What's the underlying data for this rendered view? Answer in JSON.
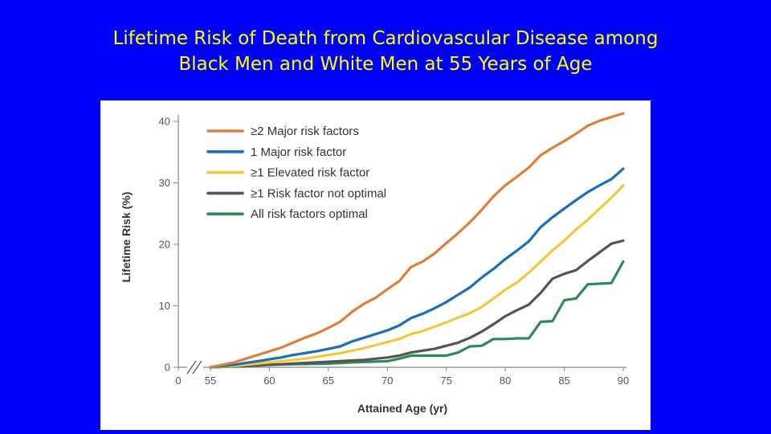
{
  "slide": {
    "title_line1": "Lifetime Risk of Death from Cardiovascular Disease among",
    "title_line2": "Black Men and White Men at 55 Years of Age",
    "background_color": "#0000ff",
    "title_color": "#ffff00"
  },
  "chart_data": {
    "type": "line",
    "title": "",
    "xlabel": "Attained Age (yr)",
    "ylabel": "Lifetime Risk (%)",
    "xlim": [
      55,
      90
    ],
    "ylim": [
      0,
      40
    ],
    "x_ticks": [
      "0",
      "55",
      "60",
      "65",
      "70",
      "75",
      "80",
      "85",
      "90"
    ],
    "y_ticks": [
      "0",
      "10",
      "20",
      "30",
      "40"
    ],
    "axis_break": true,
    "grid": false,
    "legend_position": "top-left",
    "series": [
      {
        "name": "≥2 Major risk factors",
        "color": "#e07f3c",
        "x": [
          55,
          57,
          58,
          59,
          60,
          61,
          62,
          63,
          64,
          65,
          66,
          67,
          68,
          69,
          70,
          71,
          72,
          73,
          74,
          75,
          76,
          77,
          78,
          79,
          80,
          81,
          82,
          83,
          84,
          85,
          86,
          87,
          88,
          89,
          90
        ],
        "values": [
          0,
          0.8,
          1.4,
          2,
          2.6,
          3.2,
          4,
          4.8,
          5.5,
          6.4,
          7.4,
          9,
          10.3,
          11.3,
          12.7,
          14,
          16.3,
          17.2,
          18.5,
          20.2,
          21.8,
          23.6,
          25.6,
          27.8,
          29.6,
          31,
          32.5,
          34.5,
          35.7,
          36.8,
          38,
          39.3,
          40.1,
          40.7,
          41.3
        ]
      },
      {
        "name": "1 Major risk factor",
        "color": "#1a6fb8",
        "x": [
          55,
          57,
          58,
          59,
          60,
          61,
          62,
          63,
          64,
          65,
          66,
          67,
          68,
          69,
          70,
          71,
          72,
          73,
          74,
          75,
          76,
          77,
          78,
          79,
          80,
          81,
          82,
          83,
          84,
          85,
          86,
          87,
          88,
          89,
          90
        ],
        "values": [
          0,
          0.4,
          0.7,
          1,
          1.3,
          1.6,
          2,
          2.3,
          2.6,
          3,
          3.4,
          4.2,
          4.8,
          5.4,
          6,
          6.8,
          8,
          8.7,
          9.6,
          10.6,
          11.8,
          13,
          14.6,
          16,
          17.6,
          19,
          20.5,
          22.8,
          24.4,
          25.8,
          27.2,
          28.5,
          29.6,
          30.6,
          32.3
        ]
      },
      {
        "name": "≥1 Elevated risk factor",
        "color": "#f1c93c",
        "x": [
          55,
          57,
          58,
          59,
          60,
          61,
          62,
          63,
          64,
          65,
          66,
          67,
          68,
          69,
          70,
          71,
          72,
          73,
          74,
          75,
          76,
          77,
          78,
          79,
          80,
          81,
          82,
          83,
          84,
          85,
          86,
          87,
          88,
          89,
          90
        ],
        "values": [
          0,
          0.2,
          0.4,
          0.6,
          0.8,
          1,
          1.2,
          1.4,
          1.7,
          2,
          2.3,
          2.7,
          3.1,
          3.6,
          4.1,
          4.6,
          5.4,
          5.9,
          6.6,
          7.3,
          8.1,
          8.8,
          9.8,
          11.2,
          12.6,
          13.8,
          15.4,
          17.2,
          19,
          20.6,
          22.4,
          24,
          25.8,
          27.6,
          29.6
        ]
      },
      {
        "name": "≥1 Risk factor not optimal",
        "color": "#555555",
        "x": [
          55,
          57,
          58,
          59,
          60,
          61,
          62,
          63,
          64,
          65,
          66,
          67,
          68,
          69,
          70,
          71,
          72,
          73,
          74,
          75,
          76,
          77,
          78,
          79,
          80,
          81,
          82,
          83,
          84,
          85,
          86,
          87,
          88,
          89,
          90
        ],
        "values": [
          0,
          0.1,
          0.2,
          0.3,
          0.4,
          0.5,
          0.6,
          0.7,
          0.8,
          0.9,
          1,
          1.1,
          1.2,
          1.4,
          1.6,
          1.9,
          2.4,
          2.7,
          3,
          3.5,
          4,
          4.8,
          5.8,
          7,
          8.3,
          9.3,
          10.2,
          12.1,
          14.4,
          15.2,
          15.8,
          17.3,
          18.7,
          20.1,
          20.6
        ]
      },
      {
        "name": "All risk factors optimal",
        "color": "#2e8b57",
        "x": [
          55,
          57,
          60,
          62,
          65,
          67,
          70,
          71,
          72,
          73,
          74,
          75,
          76,
          77,
          78,
          79,
          80,
          81,
          82,
          83,
          84,
          85,
          86,
          87,
          88,
          89,
          90
        ],
        "values": [
          0,
          0.2,
          0.4,
          0.5,
          0.6,
          0.8,
          1,
          1.4,
          1.9,
          1.9,
          1.9,
          1.9,
          2.4,
          3.4,
          3.5,
          4.6,
          4.6,
          4.7,
          4.7,
          7.4,
          7.5,
          10.9,
          11.2,
          13.5,
          13.6,
          13.7,
          17.2
        ]
      }
    ]
  }
}
